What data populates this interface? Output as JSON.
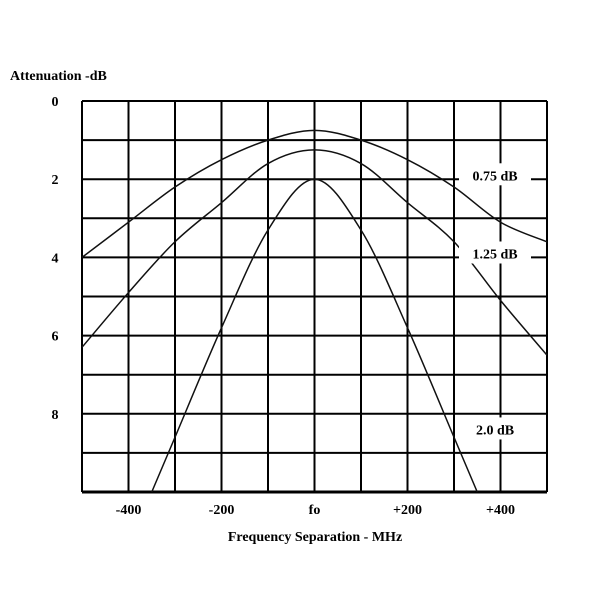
{
  "chart_data": {
    "type": "line",
    "title": "",
    "ylabel": "Attenuation -dB",
    "xlabel": "Frequency Separation - MHz",
    "xlim": [
      -500,
      500
    ],
    "ylim": [
      0,
      10
    ],
    "y_inverted": true,
    "grid": true,
    "x_ticks": [
      {
        "value": -400,
        "label": "-400"
      },
      {
        "value": -200,
        "label": "-200"
      },
      {
        "value": 0,
        "label": "fo"
      },
      {
        "value": 200,
        "label": "+200"
      },
      {
        "value": 400,
        "label": "+400"
      }
    ],
    "y_ticks": [
      {
        "value": 0,
        "label": "0"
      },
      {
        "value": 2,
        "label": "2"
      },
      {
        "value": 4,
        "label": "4"
      },
      {
        "value": 6,
        "label": "6"
      },
      {
        "value": 8,
        "label": "8"
      }
    ],
    "series": [
      {
        "name": "0.75 dB",
        "x": [
          -500,
          -400,
          -300,
          -200,
          -100,
          0,
          100,
          200,
          300,
          400,
          500
        ],
        "values": [
          4.0,
          3.1,
          2.2,
          1.5,
          1.0,
          0.75,
          1.0,
          1.5,
          2.2,
          3.1,
          3.6
        ]
      },
      {
        "name": "1.25 dB",
        "x": [
          -500,
          -400,
          -300,
          -200,
          -100,
          0,
          100,
          200,
          300,
          400,
          500
        ],
        "values": [
          6.3,
          4.9,
          3.6,
          2.6,
          1.6,
          1.25,
          1.6,
          2.6,
          3.6,
          5.1,
          6.5
        ]
      },
      {
        "name": "2.0 dB",
        "x": [
          -350,
          -300,
          -200,
          -100,
          0,
          100,
          200,
          300,
          350
        ],
        "values": [
          10.0,
          8.6,
          5.8,
          3.3,
          2.0,
          3.3,
          5.8,
          8.6,
          10.0
        ]
      }
    ],
    "annotations": [
      {
        "text": "0.75 dB",
        "x": 300,
        "y": 1.9
      },
      {
        "text": "1.25 dB",
        "x": 300,
        "y": 3.9
      },
      {
        "text": "2.0 dB",
        "x": 300,
        "y": 8.4
      }
    ]
  }
}
